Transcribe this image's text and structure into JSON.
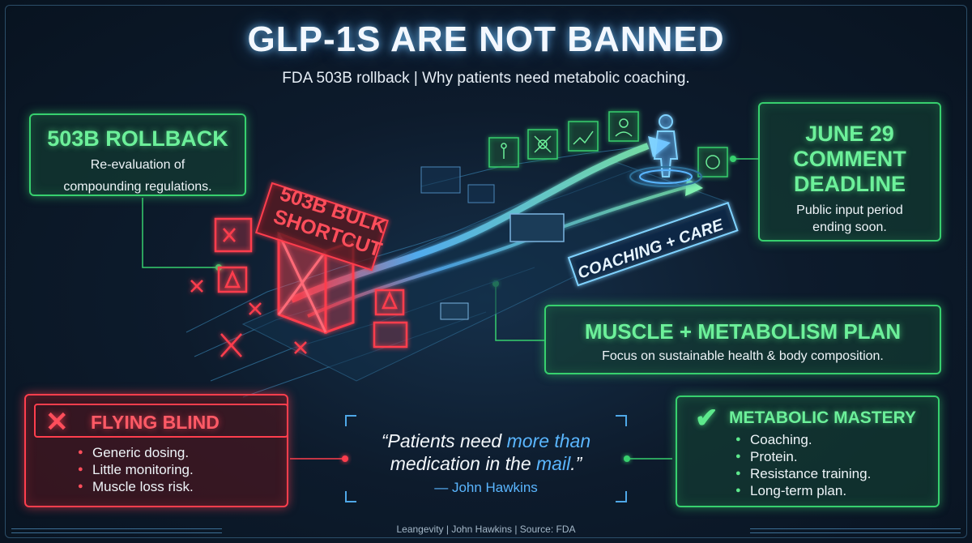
{
  "header": {
    "title": "GLP-1S ARE NOT BANNED",
    "subtitle": "FDA 503B rollback | Why patients need metabolic coaching."
  },
  "rollback": {
    "title": "503B ROLLBACK",
    "body_line1": "Re-evaluation of",
    "body_line2": "compounding regulations."
  },
  "deadline": {
    "title_line1": "JUNE 29",
    "title_line2": "COMMENT",
    "title_line3": "DEADLINE",
    "body_line1": "Public input period",
    "body_line2": "ending soon."
  },
  "muscle": {
    "title": "MUSCLE + METABOLISM PLAN",
    "body": "Focus on sustainable health & body composition."
  },
  "shortcut": {
    "line1": "503B BULK",
    "line2": "SHORTCUT"
  },
  "coaching_banner": "COACHING + CARE",
  "blind": {
    "icon": "x-icon",
    "title": "FLYING BLIND",
    "items": [
      "Generic dosing.",
      "Little monitoring.",
      "Muscle loss risk."
    ]
  },
  "mastery": {
    "icon": "check-icon",
    "title": "METABOLIC MASTERY",
    "items": [
      "Coaching.",
      "Protein.",
      "Resistance training.",
      "Long-term plan."
    ]
  },
  "quote": {
    "part1": "“Patients need ",
    "highlight1": "more than",
    "part2": "medication in the ",
    "highlight2": "mail",
    "part3": ".”",
    "author": "— John Hawkins"
  },
  "footer": "Leangevity | John Hawkins | Source: FDA",
  "colors": {
    "green": "#37d06e",
    "red": "#ff3e4d",
    "blue": "#5ab6ff"
  }
}
